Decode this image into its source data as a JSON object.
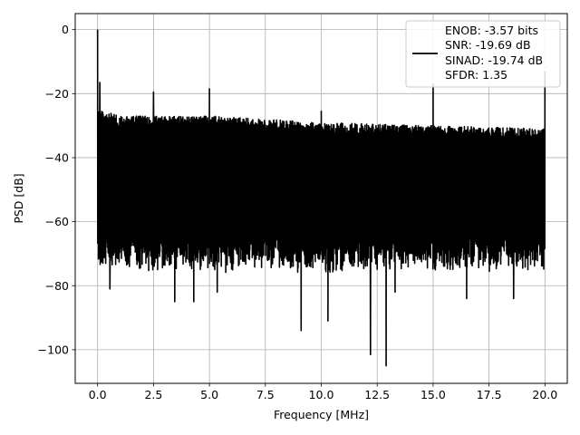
{
  "chart_data": {
    "type": "line",
    "xlabel": "Frequency [MHz]",
    "ylabel": "PSD [dB]",
    "xlim": [
      -1.0,
      21.0
    ],
    "ylim": [
      -110.5,
      5.0
    ],
    "xticks": [
      0.0,
      2.5,
      5.0,
      7.5,
      10.0,
      12.5,
      15.0,
      17.5,
      20.0
    ],
    "xtick_labels": [
      "0.0",
      "2.5",
      "5.0",
      "7.5",
      "10.0",
      "12.5",
      "15.0",
      "17.5",
      "20.0"
    ],
    "yticks": [
      0,
      -20,
      -40,
      -60,
      -80,
      -100
    ],
    "ytick_labels": [
      "0",
      "−20",
      "−40",
      "−60",
      "−80",
      "−100"
    ],
    "grid": true,
    "legend_position": "top-right",
    "line_color": "#000000",
    "series": [
      {
        "legend_lines": [
          "ENOB: -3.57 bits",
          "SNR: -19.69 dB",
          "SINAD: -19.74 dB",
          "SFDR: 1.35"
        ],
        "x_range": [
          0.0,
          20.0
        ],
        "noise_upper_envelope": [
          [
            0.1,
            -25
          ],
          [
            1.0,
            -27
          ],
          [
            5.0,
            -27
          ],
          [
            10.0,
            -29
          ],
          [
            15.0,
            -30
          ],
          [
            20.0,
            -31
          ]
        ],
        "noise_floor_typical_range": [
          -67,
          -76
        ],
        "spurs": [
          {
            "x": 0.0,
            "y": 0.0
          },
          {
            "x": 0.1,
            "y": -16.5
          },
          {
            "x": 2.5,
            "y": -19.5
          },
          {
            "x": 5.0,
            "y": -18.5
          },
          {
            "x": 10.0,
            "y": -25.5
          },
          {
            "x": 15.0,
            "y": -17.0
          },
          {
            "x": 20.0,
            "y": -13.0
          }
        ],
        "dips": [
          {
            "x": 0.55,
            "y": -81
          },
          {
            "x": 3.45,
            "y": -85
          },
          {
            "x": 4.3,
            "y": -85
          },
          {
            "x": 5.35,
            "y": -82
          },
          {
            "x": 9.1,
            "y": -94
          },
          {
            "x": 10.3,
            "y": -91
          },
          {
            "x": 12.2,
            "y": -101.5
          },
          {
            "x": 12.9,
            "y": -105
          },
          {
            "x": 13.3,
            "y": -82
          },
          {
            "x": 16.5,
            "y": -84
          },
          {
            "x": 18.6,
            "y": -84
          }
        ]
      }
    ]
  }
}
